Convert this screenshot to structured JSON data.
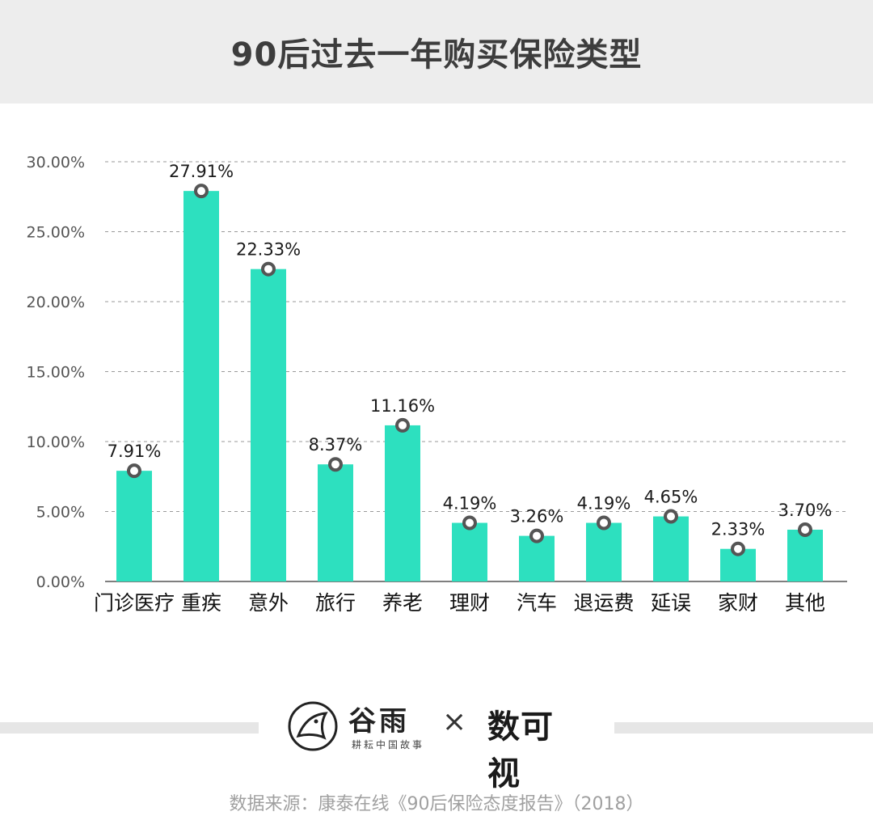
{
  "header": {
    "title": "90后过去一年购买保险类型"
  },
  "chart_data": {
    "type": "bar",
    "categories": [
      "门诊医疗",
      "重疾",
      "意外",
      "旅行",
      "养老",
      "理财",
      "汽车",
      "退运费",
      "延误",
      "家财",
      "其他"
    ],
    "values": [
      7.91,
      27.91,
      22.33,
      8.37,
      11.16,
      4.19,
      3.26,
      4.19,
      4.65,
      2.33,
      3.7
    ],
    "data_labels": [
      "7.91%",
      "27.91%",
      "22.33%",
      "8.37%",
      "11.16%",
      "4.19%",
      "3.26%",
      "4.19%",
      "4.65%",
      "2.33%",
      "3.70%"
    ],
    "y_ticks": [
      "0.00%",
      "5.00%",
      "10.00%",
      "15.00%",
      "20.00%",
      "25.00%",
      "30.00%"
    ],
    "ylim": [
      0,
      30
    ],
    "grid": true,
    "bar_color": "#2de0bf",
    "marker_color": "#555555"
  },
  "footer": {
    "logo_gu_title": "谷雨",
    "logo_gu_sub": "耕耘中国故事",
    "logo_x": "×",
    "logo_shu": "数可视",
    "source": "数据来源：康泰在线《90后保险态度报告》（2018）"
  }
}
